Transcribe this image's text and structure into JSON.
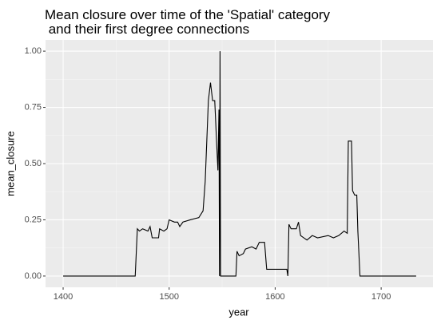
{
  "chart_data": {
    "type": "line",
    "title": [
      "Mean closure over time of the 'Spatial' category",
      " and their first degree connections"
    ],
    "x_label": "year",
    "y_label": "mean_closure",
    "xlim": [
      1383.4,
      1748.9
    ],
    "ylim": [
      -0.05,
      1.05
    ],
    "xticks": [
      1400,
      1500,
      1600,
      1700
    ],
    "yticks": [
      {
        "value": 0,
        "label": "0.00"
      },
      {
        "value": 0.25,
        "label": "0.25"
      },
      {
        "value": 0.5,
        "label": "0.50"
      },
      {
        "value": 0.75,
        "label": "0.75"
      },
      {
        "value": 1,
        "label": "1.00"
      }
    ],
    "grid": true,
    "series": [
      {
        "name": "mean_closure",
        "color": "#000000",
        "x": [
          1400,
          1468,
          1470,
          1472,
          1475,
          1480,
          1482,
          1484,
          1490,
          1491,
          1495,
          1498,
          1500,
          1505,
          1508,
          1510,
          1513,
          1520,
          1528,
          1532,
          1534,
          1537,
          1539,
          1541,
          1543,
          1545,
          1546,
          1547,
          1547.5,
          1548,
          1548.5,
          1563,
          1564,
          1566,
          1570,
          1572,
          1578,
          1582,
          1585,
          1590,
          1592,
          1611,
          1612,
          1613,
          1615,
          1620,
          1622,
          1624,
          1630,
          1635,
          1640,
          1650,
          1655,
          1660,
          1665,
          1668,
          1669,
          1672,
          1673,
          1675,
          1677,
          1678,
          1680,
          1733
        ],
        "values": [
          0,
          0,
          0.21,
          0.2,
          0.21,
          0.2,
          0.22,
          0.17,
          0.17,
          0.21,
          0.2,
          0.21,
          0.25,
          0.24,
          0.24,
          0.22,
          0.24,
          0.25,
          0.26,
          0.29,
          0.42,
          0.78,
          0.86,
          0.78,
          0.78,
          0.57,
          0.47,
          0.74,
          0,
          1,
          0,
          0,
          0.11,
          0.09,
          0.1,
          0.12,
          0.13,
          0.12,
          0.15,
          0.15,
          0.03,
          0.03,
          0,
          0.23,
          0.21,
          0.21,
          0.24,
          0.18,
          0.16,
          0.18,
          0.17,
          0.18,
          0.17,
          0.18,
          0.2,
          0.19,
          0.6,
          0.6,
          0.38,
          0.36,
          0.36,
          0.2,
          0,
          0
        ]
      }
    ]
  }
}
